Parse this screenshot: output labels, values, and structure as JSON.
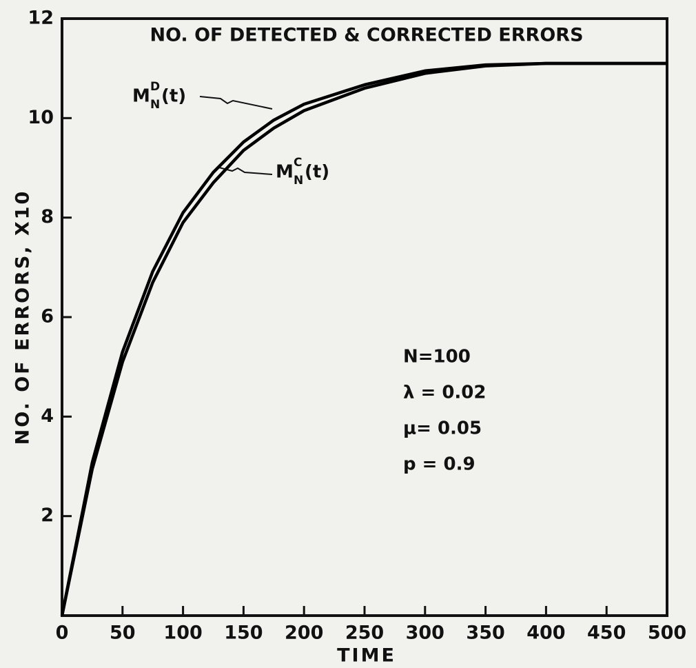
{
  "chart_data": {
    "type": "line",
    "title": "NO. OF DETECTED & CORRECTED ERRORS",
    "x_label": "TIME",
    "y_label": "NO. OF ERRORS, X10",
    "x": [
      0,
      25,
      50,
      75,
      100,
      125,
      150,
      175,
      200,
      250,
      300,
      350,
      400,
      450,
      500
    ],
    "series": [
      {
        "name": "M",
        "sup": "D",
        "sub": "N",
        "tail": "(t)",
        "color": "#000000",
        "values": [
          0,
          3.08,
          5.3,
          6.92,
          8.1,
          8.91,
          9.52,
          9.96,
          10.28,
          10.67,
          10.95,
          11.07,
          11.1,
          11.1,
          11.1
        ]
      },
      {
        "name": "M",
        "sup": "C",
        "sub": "N",
        "tail": "(t)",
        "color": "#000000",
        "values": [
          0,
          2.95,
          5.1,
          6.7,
          7.9,
          8.7,
          9.35,
          9.8,
          10.15,
          10.6,
          10.9,
          11.05,
          11.1,
          11.1,
          11.1
        ]
      }
    ],
    "annotations": [
      "N=100",
      "λ = 0.02",
      "μ= 0.05",
      "p = 0.9"
    ],
    "xlim": [
      0,
      500
    ],
    "xticks": [
      0,
      50,
      100,
      150,
      200,
      250,
      300,
      350,
      400,
      450,
      500
    ],
    "ylim": [
      0,
      12
    ],
    "yticks": [
      2,
      4,
      6,
      8,
      10,
      12
    ]
  }
}
